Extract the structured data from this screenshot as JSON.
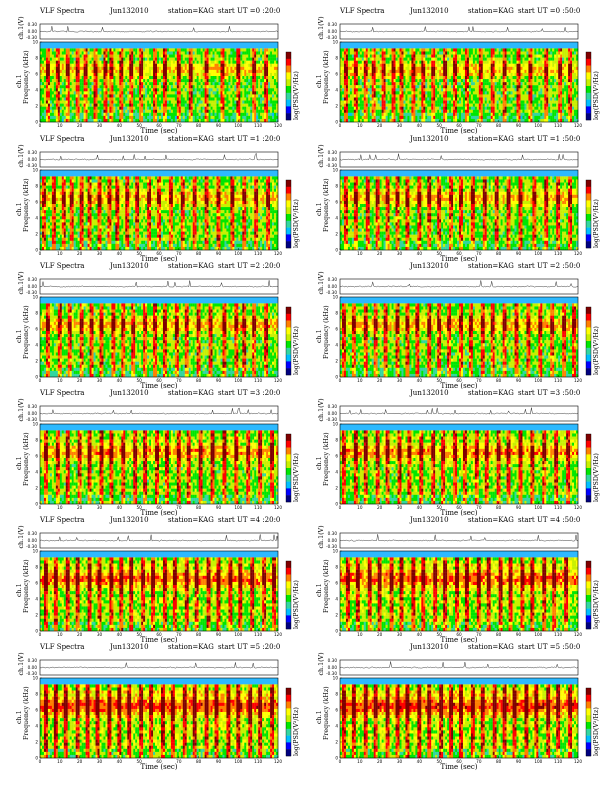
{
  "figure": {
    "panels_layout": "6 rows x 2 columns",
    "colors": {
      "background": "#2db9ff",
      "colormap": [
        "#000080",
        "#0000ff",
        "#00bfff",
        "#33d6a0",
        "#00e600",
        "#c8f000",
        "#ffff00",
        "#ff8000",
        "#ff0000",
        "#7f0000"
      ],
      "top_trace": "#000000"
    }
  },
  "chart_data": [
    {
      "type": "heatmap",
      "header": {
        "left": "VLF Spectra",
        "date": "Jun132010",
        "station": "station=KAG",
        "start": "start  UT =0 :20:0"
      },
      "xlabel": "Time  (sec)",
      "ylabel_chan": "ch.1",
      "ylabel_freq": "Frequency  (kHz)",
      "ylabel_trace": "ch.1(V)",
      "colorbar_label": "log(PSD(V²/Hz)",
      "xticks": [
        0,
        10,
        20,
        30,
        40,
        50,
        60,
        70,
        80,
        90,
        100,
        110,
        120
      ],
      "yticks": [
        0,
        2,
        4,
        6,
        8,
        10
      ],
      "trace_ticks": [
        "0.00",
        "-0.30"
      ],
      "trace_top": "0.30",
      "xlim": [
        0,
        120
      ],
      "ylim": [
        0,
        10
      ],
      "intensity": 0.55,
      "burst_times": [
        4,
        9,
        14,
        19,
        23,
        28,
        33,
        36,
        41,
        46,
        51,
        58,
        63,
        70,
        76,
        84,
        92,
        100,
        108,
        114
      ]
    },
    {
      "type": "heatmap",
      "header": {
        "left": "VLF Spectra",
        "date": "Jun132010",
        "station": "station=KAG",
        "start": "start  UT =0 :50:0"
      },
      "xlabel": "Time  (sec)",
      "ylabel_chan": "ch.1",
      "ylabel_freq": "Frequency  (kHz)",
      "ylabel_trace": "ch.1(V)",
      "colorbar_label": "log(PSD(V²/Hz)",
      "xticks": [
        0,
        10,
        20,
        30,
        40,
        50,
        60,
        70,
        80,
        90,
        100,
        110,
        120
      ],
      "yticks": [
        0,
        2,
        4,
        6,
        8,
        10
      ],
      "trace_ticks": [
        "0.00",
        "-0.30"
      ],
      "trace_top": "0.30",
      "xlim": [
        0,
        120
      ],
      "ylim": [
        0,
        10
      ],
      "intensity": 0.55,
      "burst_times": [
        3,
        8,
        13,
        17,
        22,
        27,
        31,
        37,
        42,
        47,
        53,
        58,
        64,
        71,
        77,
        83,
        90,
        96,
        104,
        111,
        116
      ]
    },
    {
      "type": "heatmap",
      "header": {
        "left": "VLF Spectra",
        "date": "Jun132010",
        "station": "station=KAG",
        "start": "start  UT =1 :20:0"
      },
      "xlabel": "Time  (sec)",
      "ylabel_chan": "ch.1",
      "ylabel_freq": "Frequency  (kHz)",
      "ylabel_trace": "ch.1(V)",
      "colorbar_label": "log(PSD(V²/Hz)",
      "xticks": [
        0,
        10,
        20,
        30,
        40,
        50,
        60,
        70,
        80,
        90,
        100,
        110,
        120
      ],
      "yticks": [
        0,
        2,
        4,
        6,
        8,
        10
      ],
      "trace_ticks": [
        "0.00",
        "-0.30"
      ],
      "trace_top": "0.30",
      "xlim": [
        0,
        120
      ],
      "ylim": [
        0,
        10
      ],
      "intensity": 0.6,
      "burst_times": [
        2,
        7,
        12,
        16,
        21,
        25,
        30,
        35,
        39,
        44,
        49,
        55,
        60,
        66,
        72,
        78,
        84,
        90,
        97,
        103,
        109,
        115
      ]
    },
    {
      "type": "heatmap",
      "header": {
        "left": "",
        "date": "Jun132010",
        "station": "station=KAG",
        "start": "start  UT =1 :50:0"
      },
      "xlabel": "Time  (sec)",
      "ylabel_chan": "ch.1",
      "ylabel_freq": "Frequency  (kHz)",
      "ylabel_trace": "ch.1(V)",
      "colorbar_label": "log(PSD(V²/Hz)",
      "xticks": [
        0,
        10,
        20,
        30,
        40,
        50,
        60,
        70,
        80,
        90,
        100,
        110,
        120
      ],
      "yticks": [
        0,
        2,
        4,
        6,
        8,
        10
      ],
      "trace_ticks": [
        "0.00",
        "-0.30"
      ],
      "trace_top": "0.30",
      "xlim": [
        0,
        120
      ],
      "ylim": [
        0,
        10
      ],
      "intensity": 0.6,
      "burst_times": [
        3,
        8,
        14,
        19,
        24,
        29,
        34,
        40,
        45,
        50,
        56,
        61,
        67,
        73,
        79,
        85,
        91,
        98,
        104,
        110,
        116
      ]
    },
    {
      "type": "heatmap",
      "header": {
        "left": "VLF Spectra",
        "date": "Jun132010",
        "station": "station=KAG",
        "start": "start  UT =2 :20:0"
      },
      "xlabel": "Time  (sec)",
      "ylabel_chan": "ch.1",
      "ylabel_freq": "Frequency  (kHz)",
      "ylabel_trace": "ch.1(V)",
      "colorbar_label": "log(PSD(V²/Hz)",
      "xticks": [
        0,
        10,
        20,
        30,
        40,
        50,
        60,
        70,
        80,
        90,
        100,
        110,
        120
      ],
      "yticks": [
        0,
        2,
        4,
        6,
        8,
        10
      ],
      "trace_ticks": [
        "0.00",
        "-0.30"
      ],
      "trace_top": "0.30",
      "xlim": [
        0,
        120
      ],
      "ylim": [
        0,
        10
      ],
      "intensity": 0.6,
      "burst_times": [
        4,
        10,
        15,
        21,
        26,
        31,
        37,
        42,
        47,
        53,
        58,
        63,
        69,
        74,
        80,
        86,
        93,
        99,
        103,
        108,
        114
      ]
    },
    {
      "type": "heatmap",
      "header": {
        "left": "",
        "date": "Jun132010",
        "station": "station=KAG",
        "start": "start  UT =2 :50:0"
      },
      "xlabel": "Time  (sec)",
      "ylabel_chan": "ch.1",
      "ylabel_freq": "Frequency  (kHz)",
      "ylabel_trace": "ch.1(V)",
      "colorbar_label": "log(PSD(V²/Hz)",
      "xticks": [
        0,
        10,
        20,
        30,
        40,
        50,
        60,
        70,
        80,
        90,
        100,
        110,
        120
      ],
      "yticks": [
        0,
        2,
        4,
        6,
        8,
        10
      ],
      "trace_ticks": [
        "0.00",
        "-0.30"
      ],
      "trace_top": "0.30",
      "xlim": [
        0,
        120
      ],
      "ylim": [
        0,
        10
      ],
      "intensity": 0.6,
      "burst_times": [
        2,
        7,
        13,
        18,
        23,
        29,
        34,
        39,
        45,
        50,
        55,
        61,
        66,
        72,
        77,
        83,
        89,
        95,
        101,
        107,
        113,
        118
      ]
    },
    {
      "type": "heatmap",
      "header": {
        "left": "VLF Spectra",
        "date": "Jun132010",
        "station": "station=KAG",
        "start": "start  UT =3 :20:0"
      },
      "xlabel": "Time  (sec)",
      "ylabel_chan": "ch.1",
      "ylabel_freq": "Frequency  (kHz)",
      "ylabel_trace": "ch.1(V)",
      "colorbar_label": "log(PSD(V²/Hz)",
      "xticks": [
        0,
        10,
        20,
        30,
        40,
        50,
        60,
        70,
        80,
        90,
        100,
        110,
        120
      ],
      "yticks": [
        0,
        2,
        4,
        6,
        8,
        10
      ],
      "trace_ticks": [
        "0.00",
        "-0.30"
      ],
      "trace_top": "0.30",
      "xlim": [
        0,
        120
      ],
      "ylim": [
        0,
        10
      ],
      "intensity": 0.7,
      "burst_times": [
        3,
        9,
        14,
        20,
        25,
        31,
        36,
        42,
        48,
        53,
        59,
        64,
        70,
        75,
        81,
        87,
        93,
        99,
        105,
        111,
        117
      ]
    },
    {
      "type": "heatmap",
      "header": {
        "left": "",
        "date": "Jun132010",
        "station": "station=KAG",
        "start": "start  UT =3 :50:0"
      },
      "xlabel": "Time  (sec)",
      "ylabel_chan": "ch.1",
      "ylabel_freq": "Frequency  (kHz)",
      "ylabel_trace": "ch.1(V)",
      "colorbar_label": "log(PSD(V²/Hz)",
      "xticks": [
        0,
        10,
        20,
        30,
        40,
        50,
        60,
        70,
        80,
        90,
        100,
        110,
        120
      ],
      "yticks": [
        0,
        2,
        4,
        6,
        8,
        10
      ],
      "trace_ticks": [
        "0.00",
        "-0.30"
      ],
      "trace_top": "0.30",
      "xlim": [
        0,
        120
      ],
      "ylim": [
        0,
        10
      ],
      "intensity": 0.7,
      "burst_times": [
        2,
        8,
        13,
        19,
        24,
        30,
        35,
        41,
        47,
        52,
        58,
        63,
        69,
        74,
        80,
        85,
        91,
        97,
        103,
        109,
        115
      ]
    },
    {
      "type": "heatmap",
      "header": {
        "left": "VLF Spectra",
        "date": "Jun132010",
        "station": "station=KAG",
        "start": "start  UT =4 :20:0"
      },
      "xlabel": "Time  (sec)",
      "ylabel_chan": "ch.1",
      "ylabel_freq": "Frequency  (kHz)",
      "ylabel_trace": "ch.1(V)",
      "colorbar_label": "log(PSD(V²/Hz)",
      "xticks": [
        0,
        10,
        20,
        30,
        40,
        50,
        60,
        70,
        80,
        90,
        100,
        110,
        120
      ],
      "yticks": [
        0,
        2,
        4,
        6,
        8,
        10
      ],
      "trace_ticks": [
        "0.00",
        "-0.30"
      ],
      "trace_top": "0.30",
      "xlim": [
        0,
        120
      ],
      "ylim": [
        0,
        10
      ],
      "intensity": 0.85,
      "burst_times": [
        3,
        8,
        14,
        19,
        25,
        30,
        36,
        41,
        46,
        52,
        57,
        63,
        68,
        74,
        79,
        85,
        90,
        96,
        101,
        107,
        113,
        118
      ]
    },
    {
      "type": "heatmap",
      "header": {
        "left": "",
        "date": "Jun132010",
        "station": "station=KAG",
        "start": "start  UT =4 :50:0"
      },
      "xlabel": "Time  (sec)",
      "ylabel_chan": "ch.1",
      "ylabel_freq": "Frequency  (kHz)",
      "ylabel_trace": "ch.1(V)",
      "colorbar_label": "log(PSD(V²/Hz)",
      "xticks": [
        0,
        10,
        20,
        30,
        40,
        50,
        60,
        70,
        80,
        90,
        100,
        110,
        120
      ],
      "yticks": [
        0,
        2,
        4,
        6,
        8,
        10
      ],
      "trace_ticks": [
        "0.00",
        "-0.30"
      ],
      "trace_top": "0.30",
      "xlim": [
        0,
        120
      ],
      "ylim": [
        0,
        10
      ],
      "intensity": 0.9,
      "burst_times": [
        4,
        9,
        15,
        20,
        26,
        31,
        37,
        42,
        48,
        53,
        59,
        64,
        70,
        75,
        81,
        86,
        92,
        97,
        103,
        108,
        114
      ]
    },
    {
      "type": "heatmap",
      "header": {
        "left": "VLF Spectra",
        "date": "Jun132010",
        "station": "station=KAG",
        "start": "start  UT =5 :20:0"
      },
      "xlabel": "Time  (sec)",
      "ylabel_chan": "ch.1",
      "ylabel_freq": "Frequency  (kHz)",
      "ylabel_trace": "ch.1(V)",
      "colorbar_label": "log(PSD(V²/Hz)",
      "xticks": [
        0,
        10,
        20,
        30,
        40,
        50,
        60,
        70,
        80,
        90,
        100,
        110,
        120
      ],
      "yticks": [
        0,
        2,
        4,
        6,
        8,
        10
      ],
      "trace_ticks": [
        "0.00",
        "-0.30"
      ],
      "trace_top": "0.30",
      "xlim": [
        0,
        120
      ],
      "ylim": [
        0,
        10
      ],
      "intensity": 1.0,
      "burst_times": [
        3,
        8,
        13,
        19,
        24,
        29,
        35,
        40,
        45,
        51,
        56,
        62,
        67,
        73,
        78,
        84,
        89,
        95,
        100,
        106,
        111,
        117
      ]
    },
    {
      "type": "heatmap",
      "header": {
        "left": "",
        "date": "Jun132010",
        "station": "station=KAG",
        "start": "start  UT =5 :50:0"
      },
      "xlabel": "Time  (sec)",
      "ylabel_chan": "ch.1",
      "ylabel_freq": "Frequency  (kHz)",
      "ylabel_trace": "ch.1(V)",
      "colorbar_label": "log(PSD(V²/Hz)",
      "xticks": [
        0,
        10,
        20,
        30,
        40,
        50,
        60,
        70,
        80,
        90,
        100,
        110,
        120
      ],
      "yticks": [
        0,
        2,
        4,
        6,
        8,
        10
      ],
      "trace_ticks": [
        "0.00",
        "-0.30"
      ],
      "trace_top": "0.30",
      "xlim": [
        0,
        120
      ],
      "ylim": [
        0,
        10
      ],
      "intensity": 1.0,
      "burst_times": [
        2,
        7,
        13,
        18,
        24,
        29,
        34,
        40,
        45,
        51,
        56,
        61,
        67,
        72,
        78,
        83,
        88,
        94,
        99,
        105,
        110,
        116
      ]
    }
  ]
}
